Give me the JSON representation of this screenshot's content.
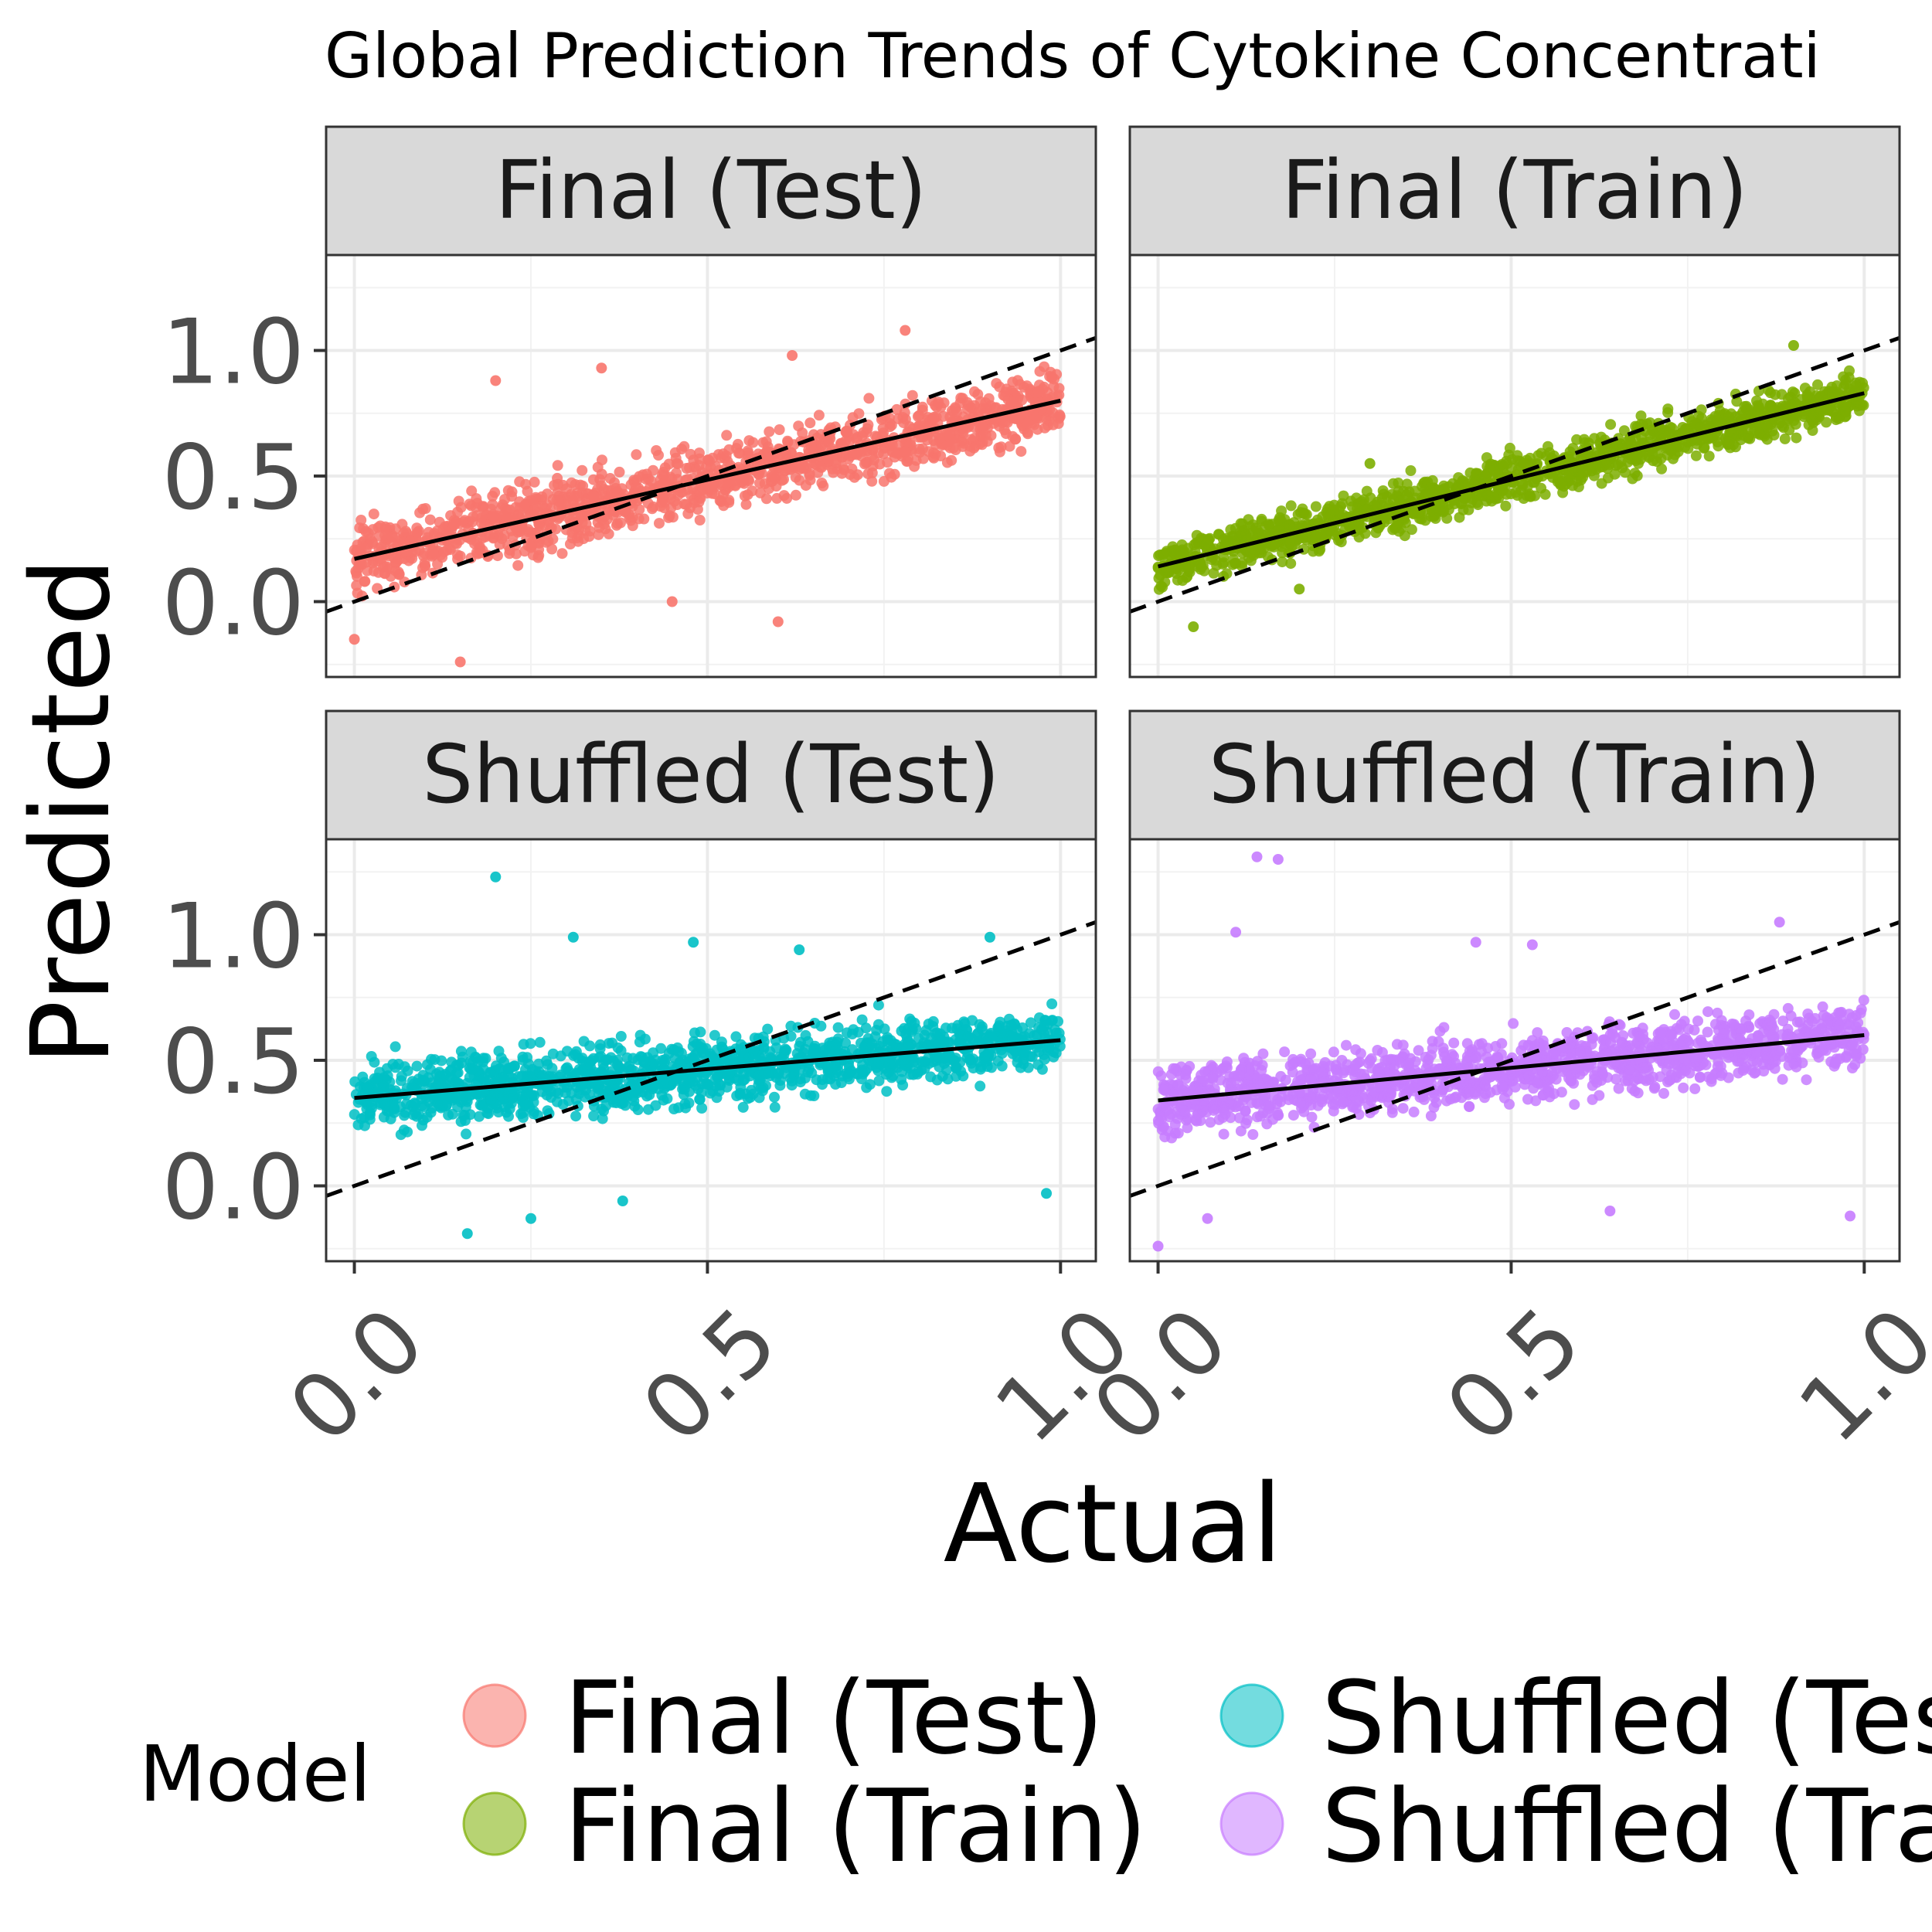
{
  "chart_data": {
    "type": "scatter",
    "title": "Global Prediction Trends of Cytokine Concentrati",
    "xlabel": "Actual",
    "ylabel": "Predicted",
    "xlim": [
      -0.04,
      1.05
    ],
    "ylim": [
      -0.3,
      1.38
    ],
    "x_ticks": [
      0.0,
      0.5,
      1.0
    ],
    "x_tick_labels": [
      "0.0",
      "0.5",
      "1.0"
    ],
    "y_ticks": [
      0.0,
      0.5,
      1.0
    ],
    "y_tick_labels": [
      "0.0",
      "0.5",
      "1.0"
    ],
    "grid": true,
    "reference_line": {
      "style": "dashed",
      "slope": 1,
      "intercept": 0
    },
    "legend": {
      "title": "Model",
      "placement": "bottom",
      "entries": [
        "Final (Test)",
        "Final (Train)",
        "Shuffled (Tes",
        "Shuffled (Tra"
      ]
    },
    "panels": [
      {
        "name": "Final (Test)",
        "color": "#F8766D",
        "fit_intercept": 0.17,
        "fit_slope": 0.63,
        "x_range": [
          0.0,
          1.0
        ],
        "y_spread": 0.13,
        "outliers": [
          [
            0.2,
            0.88
          ],
          [
            0.35,
            0.93
          ],
          [
            0.62,
            0.98
          ],
          [
            0.78,
            1.08
          ],
          [
            0.0,
            -0.15
          ],
          [
            0.15,
            -0.24
          ],
          [
            0.6,
            -0.08
          ],
          [
            0.45,
            0.0
          ]
        ]
      },
      {
        "name": "Final (Train)",
        "color": "#7CAE00",
        "fit_intercept": 0.14,
        "fit_slope": 0.69,
        "x_range": [
          0.0,
          1.0
        ],
        "y_spread": 0.09,
        "outliers": [
          [
            0.05,
            -0.1
          ],
          [
            0.3,
            0.55
          ],
          [
            0.2,
            0.05
          ],
          [
            0.9,
            1.02
          ]
        ]
      },
      {
        "name": "Shuffled (Test)",
        "color": "#00BFC4",
        "fit_intercept": 0.35,
        "fit_slope": 0.23,
        "x_range": [
          0.0,
          1.0
        ],
        "y_spread": 0.13,
        "outliers": [
          [
            0.2,
            1.23
          ],
          [
            0.31,
            0.99
          ],
          [
            0.48,
            0.97
          ],
          [
            0.63,
            0.94
          ],
          [
            0.9,
            0.99
          ],
          [
            0.16,
            -0.19
          ],
          [
            0.25,
            -0.13
          ],
          [
            0.38,
            -0.06
          ],
          [
            0.98,
            -0.03
          ]
        ]
      },
      {
        "name": "Shuffled (Train)",
        "color": "#C77CFF",
        "fit_intercept": 0.34,
        "fit_slope": 0.26,
        "x_range": [
          0.0,
          1.0
        ],
        "y_spread": 0.13,
        "outliers": [
          [
            0.14,
            1.31
          ],
          [
            0.17,
            1.3
          ],
          [
            0.11,
            1.01
          ],
          [
            0.45,
            0.97
          ],
          [
            0.53,
            0.96
          ],
          [
            0.88,
            1.05
          ],
          [
            0.0,
            -0.24
          ],
          [
            0.07,
            -0.13
          ],
          [
            0.64,
            -0.1
          ],
          [
            0.98,
            -0.12
          ]
        ]
      }
    ]
  }
}
